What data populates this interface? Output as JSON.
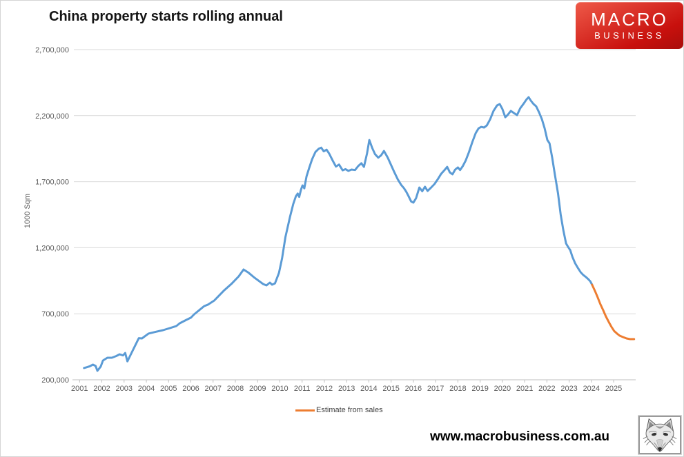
{
  "header": {
    "title": "China property starts rolling annual"
  },
  "logo": {
    "line1": "MACRO",
    "line2": "BUSINESS",
    "bg_color": "#C8100D"
  },
  "footer": {
    "url": "www.macrobusiness.com.au"
  },
  "legend": {
    "items": [
      {
        "label": "Estimate from sales",
        "color": "#ED7D31"
      }
    ]
  },
  "chart_data": {
    "type": "line",
    "title": "China property starts rolling annual",
    "xlabel": "",
    "ylabel": "1000 Sqm",
    "ylim": [
      200000,
      2700000
    ],
    "xlim": [
      2000.7,
      2026.1
    ],
    "y_ticks": [
      200000,
      700000,
      1200000,
      1700000,
      2200000,
      2700000
    ],
    "x_ticks": [
      2001,
      2002,
      2003,
      2004,
      2005,
      2006,
      2007,
      2008,
      2009,
      2010,
      2011,
      2012,
      2013,
      2014,
      2015,
      2016,
      2017,
      2018,
      2019,
      2020,
      2021,
      2022,
      2023,
      2024,
      2025
    ],
    "grid": "horizontal",
    "legend_position": "bottom-center",
    "series": [
      {
        "name": "China property starts rolling annual",
        "color": "#5B9BD5",
        "in_legend": false,
        "points": [
          [
            2001.2,
            289000
          ],
          [
            2001.45,
            302000
          ],
          [
            2001.6,
            315000
          ],
          [
            2001.72,
            305000
          ],
          [
            2001.8,
            268000
          ],
          [
            2001.95,
            300000
          ],
          [
            2002.05,
            346000
          ],
          [
            2002.25,
            367000
          ],
          [
            2002.45,
            367000
          ],
          [
            2002.65,
            380000
          ],
          [
            2002.8,
            393000
          ],
          [
            2002.95,
            385000
          ],
          [
            2003.05,
            403000
          ],
          [
            2003.15,
            340000
          ],
          [
            2003.28,
            385000
          ],
          [
            2003.5,
            460000
          ],
          [
            2003.66,
            515000
          ],
          [
            2003.8,
            513000
          ],
          [
            2004.1,
            550000
          ],
          [
            2004.4,
            562000
          ],
          [
            2004.75,
            576000
          ],
          [
            2005.05,
            591000
          ],
          [
            2005.35,
            607000
          ],
          [
            2005.5,
            628000
          ],
          [
            2005.8,
            654000
          ],
          [
            2006.0,
            670000
          ],
          [
            2006.15,
            696000
          ],
          [
            2006.45,
            737000
          ],
          [
            2006.6,
            758000
          ],
          [
            2006.78,
            770000
          ],
          [
            2007.05,
            800000
          ],
          [
            2007.2,
            826000
          ],
          [
            2007.5,
            878000
          ],
          [
            2007.85,
            930000
          ],
          [
            2008.15,
            983000
          ],
          [
            2008.37,
            1035000
          ],
          [
            2008.6,
            1010000
          ],
          [
            2008.87,
            972000
          ],
          [
            2009.08,
            946000
          ],
          [
            2009.25,
            925000
          ],
          [
            2009.4,
            915000
          ],
          [
            2009.55,
            936000
          ],
          [
            2009.65,
            920000
          ],
          [
            2009.78,
            930000
          ],
          [
            2009.96,
            1010000
          ],
          [
            2010.1,
            1120000
          ],
          [
            2010.25,
            1280000
          ],
          [
            2010.45,
            1430000
          ],
          [
            2010.6,
            1530000
          ],
          [
            2010.72,
            1590000
          ],
          [
            2010.8,
            1610000
          ],
          [
            2010.87,
            1585000
          ],
          [
            2010.95,
            1640000
          ],
          [
            2011.02,
            1672000
          ],
          [
            2011.1,
            1650000
          ],
          [
            2011.2,
            1740000
          ],
          [
            2011.32,
            1805000
          ],
          [
            2011.45,
            1870000
          ],
          [
            2011.6,
            1925000
          ],
          [
            2011.75,
            1950000
          ],
          [
            2011.86,
            1958000
          ],
          [
            2011.97,
            1930000
          ],
          [
            2012.1,
            1942000
          ],
          [
            2012.22,
            1912000
          ],
          [
            2012.38,
            1858000
          ],
          [
            2012.52,
            1815000
          ],
          [
            2012.66,
            1830000
          ],
          [
            2012.82,
            1786000
          ],
          [
            2012.95,
            1795000
          ],
          [
            2013.08,
            1782000
          ],
          [
            2013.22,
            1792000
          ],
          [
            2013.38,
            1788000
          ],
          [
            2013.52,
            1818000
          ],
          [
            2013.66,
            1840000
          ],
          [
            2013.78,
            1812000
          ],
          [
            2013.92,
            1915000
          ],
          [
            2014.02,
            2016000
          ],
          [
            2014.15,
            1955000
          ],
          [
            2014.28,
            1908000
          ],
          [
            2014.42,
            1882000
          ],
          [
            2014.55,
            1900000
          ],
          [
            2014.68,
            1933000
          ],
          [
            2014.85,
            1882000
          ],
          [
            2015.0,
            1825000
          ],
          [
            2015.15,
            1770000
          ],
          [
            2015.3,
            1718000
          ],
          [
            2015.45,
            1676000
          ],
          [
            2015.58,
            1650000
          ],
          [
            2015.68,
            1624000
          ],
          [
            2015.78,
            1592000
          ],
          [
            2015.9,
            1550000
          ],
          [
            2016.0,
            1542000
          ],
          [
            2016.12,
            1575000
          ],
          [
            2016.27,
            1656000
          ],
          [
            2016.4,
            1628000
          ],
          [
            2016.52,
            1662000
          ],
          [
            2016.64,
            1630000
          ],
          [
            2016.8,
            1656000
          ],
          [
            2016.95,
            1682000
          ],
          [
            2017.1,
            1720000
          ],
          [
            2017.25,
            1760000
          ],
          [
            2017.42,
            1792000
          ],
          [
            2017.52,
            1812000
          ],
          [
            2017.64,
            1770000
          ],
          [
            2017.76,
            1756000
          ],
          [
            2017.88,
            1792000
          ],
          [
            2018.0,
            1808000
          ],
          [
            2018.1,
            1788000
          ],
          [
            2018.22,
            1818000
          ],
          [
            2018.35,
            1860000
          ],
          [
            2018.5,
            1925000
          ],
          [
            2018.65,
            2000000
          ],
          [
            2018.8,
            2068000
          ],
          [
            2018.93,
            2104000
          ],
          [
            2019.05,
            2115000
          ],
          [
            2019.18,
            2110000
          ],
          [
            2019.3,
            2126000
          ],
          [
            2019.45,
            2172000
          ],
          [
            2019.6,
            2236000
          ],
          [
            2019.76,
            2277000
          ],
          [
            2019.88,
            2288000
          ],
          [
            2020.0,
            2250000
          ],
          [
            2020.13,
            2188000
          ],
          [
            2020.23,
            2204000
          ],
          [
            2020.38,
            2236000
          ],
          [
            2020.52,
            2220000
          ],
          [
            2020.66,
            2204000
          ],
          [
            2020.8,
            2256000
          ],
          [
            2020.96,
            2292000
          ],
          [
            2021.08,
            2322000
          ],
          [
            2021.18,
            2340000
          ],
          [
            2021.28,
            2314000
          ],
          [
            2021.4,
            2288000
          ],
          [
            2021.52,
            2270000
          ],
          [
            2021.65,
            2224000
          ],
          [
            2021.78,
            2172000
          ],
          [
            2021.9,
            2104000
          ],
          [
            2022.02,
            2016000
          ],
          [
            2022.12,
            1990000
          ],
          [
            2022.24,
            1880000
          ],
          [
            2022.36,
            1755000
          ],
          [
            2022.5,
            1610000
          ],
          [
            2022.62,
            1452000
          ],
          [
            2022.74,
            1332000
          ],
          [
            2022.86,
            1233000
          ],
          [
            2022.95,
            1207000
          ],
          [
            2023.05,
            1181000
          ],
          [
            2023.15,
            1130000
          ],
          [
            2023.27,
            1082000
          ],
          [
            2023.4,
            1045000
          ],
          [
            2023.52,
            1014000
          ],
          [
            2023.64,
            993000
          ],
          [
            2023.76,
            977000
          ],
          [
            2023.86,
            962000
          ],
          [
            2023.95,
            946000
          ],
          [
            2024.03,
            920000
          ]
        ]
      },
      {
        "name": "Estimate from sales",
        "color": "#ED7D31",
        "in_legend": true,
        "points": [
          [
            2024.03,
            920000
          ],
          [
            2024.16,
            873000
          ],
          [
            2024.28,
            826000
          ],
          [
            2024.4,
            774000
          ],
          [
            2024.53,
            727000
          ],
          [
            2024.65,
            680000
          ],
          [
            2024.78,
            638000
          ],
          [
            2024.9,
            602000
          ],
          [
            2025.02,
            570000
          ],
          [
            2025.15,
            550000
          ],
          [
            2025.27,
            534000
          ],
          [
            2025.43,
            523000
          ],
          [
            2025.58,
            513000
          ],
          [
            2025.74,
            508000
          ],
          [
            2025.92,
            508000
          ]
        ]
      }
    ]
  }
}
